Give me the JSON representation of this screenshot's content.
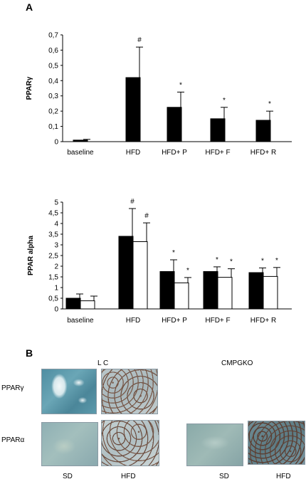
{
  "panel_a_label": "A",
  "panel_b_label": "B",
  "chart_data": [
    {
      "type": "bar",
      "ylabel": "PPARγ",
      "categories": [
        "baseline",
        "HFD",
        "HFD+ P",
        "HFD+ F",
        "HFD+ R"
      ],
      "yticks": [
        "0",
        "0,1",
        "0,2",
        "0,3",
        "0,4",
        "0,5",
        "0,6",
        "0,7"
      ],
      "ylim": [
        0,
        0.7
      ],
      "series": [
        {
          "color": "#000000",
          "values": [
            0.01,
            0.42,
            0.225,
            0.15,
            0.14
          ],
          "errors": [
            0.005,
            0.2,
            0.1,
            0.075,
            0.06
          ],
          "markers": [
            "",
            "#",
            "*",
            "*",
            "*"
          ]
        }
      ]
    },
    {
      "type": "bar",
      "ylabel": "PPAR alpha",
      "categories": [
        "baseline",
        "HFD",
        "HFD+ P",
        "HFD+ F",
        "HFD+ R"
      ],
      "yticks": [
        "0",
        "0,5",
        "1",
        "1,5",
        "2",
        "2,5",
        "3",
        "3,5",
        "4",
        "4,5",
        "5"
      ],
      "ylim": [
        0,
        5
      ],
      "series": [
        {
          "color": "#000000",
          "values": [
            0.5,
            3.4,
            1.75,
            1.75,
            1.7
          ],
          "errors": [
            0.2,
            1.3,
            0.55,
            0.22,
            0.22
          ],
          "markers": [
            "",
            "#",
            "*",
            "*",
            "*"
          ]
        },
        {
          "color": "#ffffff",
          "values": [
            0.38,
            3.15,
            1.22,
            1.48,
            1.52
          ],
          "errors": [
            0.22,
            0.88,
            0.25,
            0.4,
            0.42
          ],
          "markers": [
            "",
            "#",
            "*",
            "*",
            "*"
          ]
        }
      ]
    }
  ],
  "histology": {
    "group_lc": "L C",
    "group_ko": "CMPGKO",
    "row_gamma": "PPARγ",
    "row_alpha": "PPARα",
    "col_sd": "SD",
    "col_hfd": "HFD",
    "col_sd_ko": "SD",
    "col_hfd_ko": "HFD"
  }
}
